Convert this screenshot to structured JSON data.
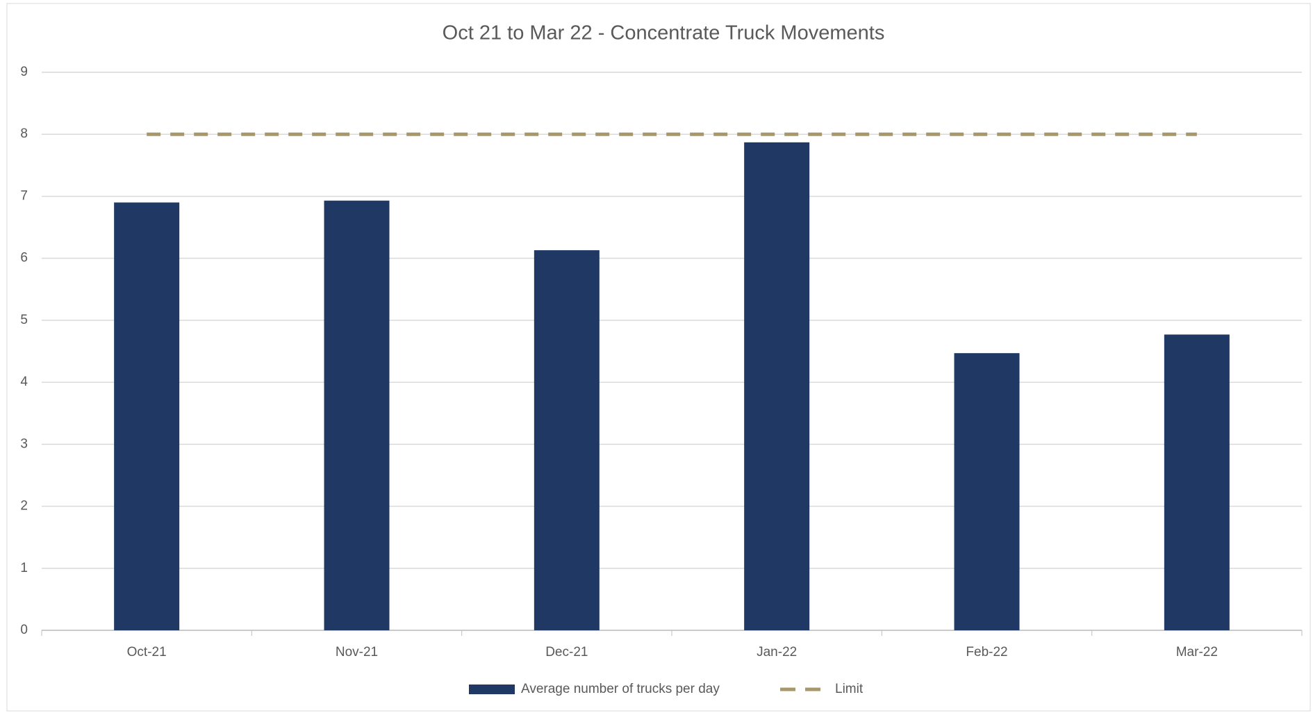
{
  "chart_data": {
    "type": "bar",
    "title": "Oct 21 to Mar 22 - Concentrate Truck Movements",
    "categories": [
      "Oct-21",
      "Nov-21",
      "Dec-21",
      "Jan-22",
      "Feb-22",
      "Mar-22"
    ],
    "series": [
      {
        "name": "Average number of trucks per day",
        "type": "bar",
        "color": "#1f3864",
        "values": [
          6.9,
          6.93,
          6.13,
          7.87,
          4.47,
          4.77
        ]
      },
      {
        "name": "Limit",
        "type": "line",
        "dashed": true,
        "color": "#a89768",
        "values": [
          8,
          8,
          8,
          8,
          8,
          8
        ]
      }
    ],
    "ylim": [
      0,
      9
    ],
    "yticks": [
      0,
      1,
      2,
      3,
      4,
      5,
      6,
      7,
      8,
      9
    ],
    "grid": true,
    "legend": "bottom"
  }
}
